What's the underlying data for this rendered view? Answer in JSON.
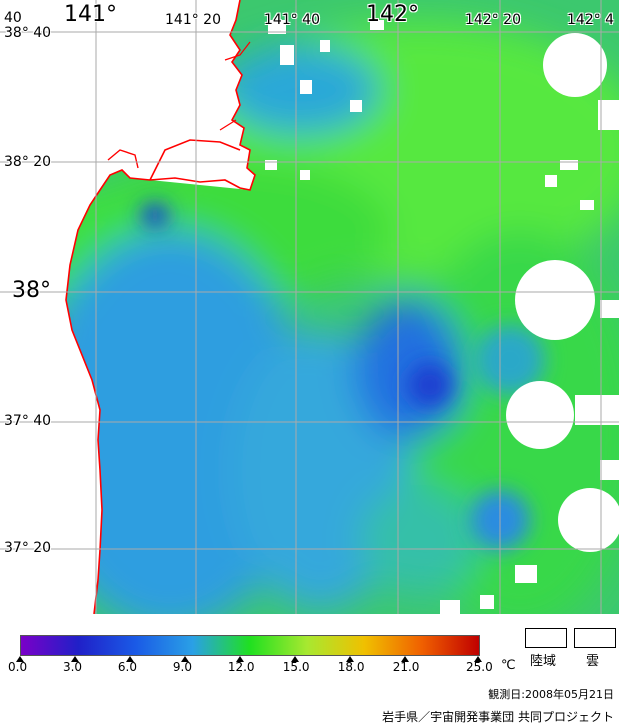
{
  "map": {
    "top_labels": [
      {
        "text": "40",
        "size": "small"
      },
      {
        "text": "141°",
        "size": "big"
      },
      {
        "text": "141° 20",
        "size": "small"
      },
      {
        "text": "141° 40",
        "size": "small"
      },
      {
        "text": "142°",
        "size": "big"
      },
      {
        "text": "142° 20",
        "size": "small"
      },
      {
        "text": "142° 4",
        "size": "small"
      }
    ],
    "left_labels": [
      {
        "text": "38° 40",
        "size": "small"
      },
      {
        "text": "38° 20",
        "size": "small"
      },
      {
        "text": "38°",
        "size": "big"
      },
      {
        "text": "37° 40",
        "size": "small"
      },
      {
        "text": "37° 20",
        "size": "small"
      }
    ],
    "colors": {
      "land": "#ffffff",
      "cloud": "#ffffff",
      "coastline": "#ff0000",
      "grid": "#aaaaaa"
    }
  },
  "legend": {
    "ticks": [
      "0.0",
      "3.0",
      "6.0",
      "9.0",
      "12.0",
      "15.0",
      "18.0",
      "21.0",
      "25.0"
    ],
    "unit": "℃",
    "land_label": "陸域",
    "cloud_label": "雲",
    "colors": [
      "#7a00c8",
      "#2020c8",
      "#1a5ae6",
      "#2aa0e6",
      "#20e020",
      "#a8e830",
      "#f0c000",
      "#f06000",
      "#c00000"
    ]
  },
  "observation_date": "観測日:2008年05月21日",
  "credit": "岩手県／宇宙開発事業団 共同プロジェクト"
}
